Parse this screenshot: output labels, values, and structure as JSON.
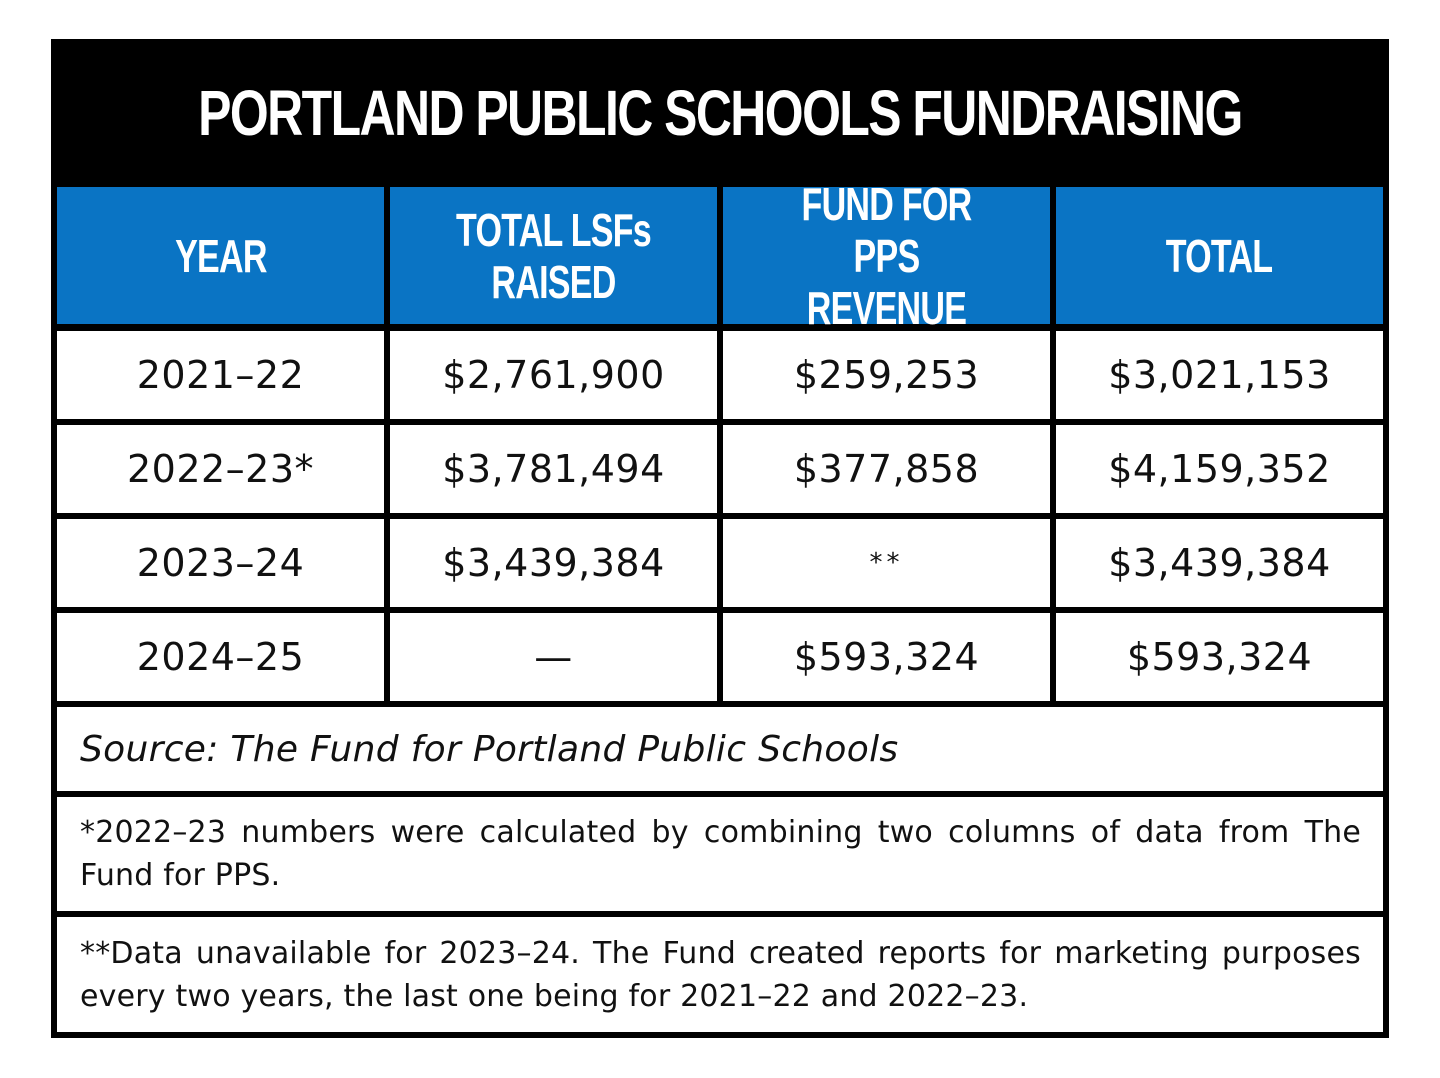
{
  "chart_data": {
    "type": "table",
    "title": "PORTLAND PUBLIC SCHOOLS FUNDRAISING",
    "columns": [
      "YEAR",
      "TOTAL LSFs RAISED",
      "FUND FOR PPS\nREVENUE",
      "TOTAL"
    ],
    "rows": [
      [
        "2021–22",
        "$2,761,900",
        "$259,253",
        "$3,021,153"
      ],
      [
        "2022–23*",
        "$3,781,494",
        "$377,858",
        "$4,159,352"
      ],
      [
        "2023–24",
        "$3,439,384",
        "**",
        "$3,439,384"
      ],
      [
        "2024–25",
        "—",
        "$593,324",
        "$593,324"
      ]
    ],
    "source": "Source: The Fund for Portland Public Schools",
    "notes": [
      "*2022–23 numbers were calculated by combining two columns of data from The Fund for PPS.",
      "**Data unavailable for 2023–24. The Fund created reports for marketing purposes every two years, the last one being for 2021–22 and 2022–23."
    ]
  },
  "colors": {
    "title_background": "#000000",
    "header_background": "#0a74c4",
    "header_text": "#ffffff",
    "grid_lines": "#000000",
    "cell_background": "#ffffff",
    "cell_text": "#111111"
  }
}
